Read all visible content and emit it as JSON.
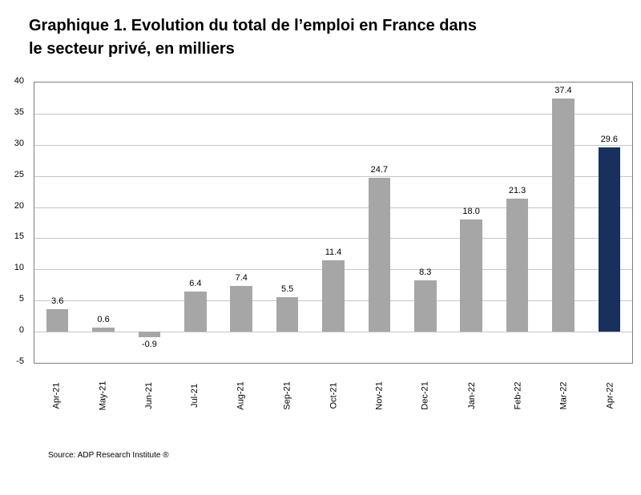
{
  "title": {
    "line1": "Graphique 1. Evolution du total de l’emploi en France dans",
    "line2": "le secteur privé, en milliers"
  },
  "source": "Source: ADP Research  Institute ®",
  "chart_data": {
    "type": "bar",
    "title": "Graphique 1. Evolution du total de l’emploi en France dans le secteur privé, en milliers",
    "categories": [
      "Apr-21",
      "May-21",
      "Jun-21",
      "Jul-21",
      "Aug-21",
      "Sep-21",
      "Oct-21",
      "Nov-21",
      "Dec-21",
      "Jan-22",
      "Feb-22",
      "Mar-22",
      "Apr-22"
    ],
    "values": [
      3.6,
      0.6,
      -0.9,
      6.4,
      7.4,
      5.5,
      11.4,
      24.7,
      8.3,
      18.0,
      21.3,
      37.4,
      29.6
    ],
    "value_labels": [
      "3.6",
      "0.6",
      "-0.9",
      "6.4",
      "7.4",
      "5.5",
      "11.4",
      "24.7",
      "8.3",
      "18.0",
      "21.3",
      "37.4",
      "29.6"
    ],
    "highlight_index": 12,
    "bar_color": "#A6A6A6",
    "highlight_color": "#17305E",
    "ylim": [
      -5,
      40
    ],
    "yticks": [
      -5,
      0,
      5,
      10,
      15,
      20,
      25,
      30,
      35,
      40
    ],
    "grid": true,
    "gridline_color": "#C6C6C6",
    "plot_border_color": "#7F7F7F",
    "legend": "none",
    "xlabel": "",
    "ylabel": ""
  }
}
